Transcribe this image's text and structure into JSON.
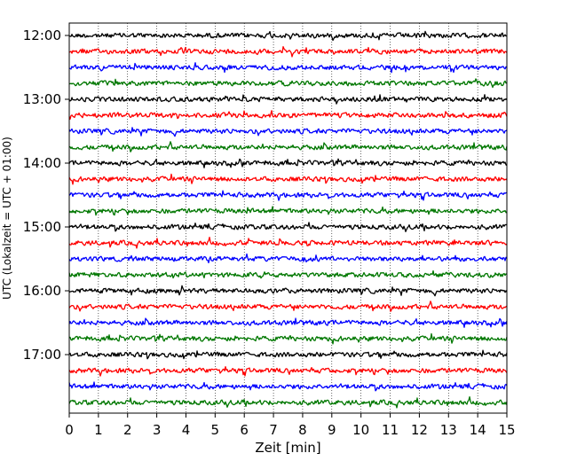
{
  "chart_data": {
    "type": "line",
    "xlabel": "Zeit  [min]",
    "ylabel": "UTC (Lokalzeit = UTC + 01:00)",
    "xlim": [
      0,
      15
    ],
    "x_ticks": [
      "0",
      "1",
      "2",
      "3",
      "4",
      "5",
      "6",
      "7",
      "8",
      "9",
      "10",
      "11",
      "12",
      "13",
      "14",
      "15"
    ],
    "y_ticks": [
      "12:00",
      "13:00",
      "14:00",
      "15:00",
      "16:00",
      "17:00"
    ],
    "grid": "vertical-dotted",
    "trace_colors": [
      "#000000",
      "#ff0000",
      "#0000ff",
      "#007700"
    ],
    "traces_per_hour": 4,
    "trace_interval_min": 15,
    "trace_count": 24,
    "start_time": "12:00"
  }
}
